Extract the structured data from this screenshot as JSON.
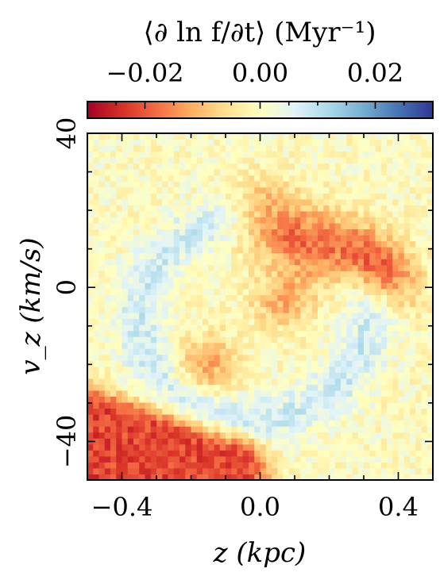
{
  "chart_data": {
    "type": "heatmap",
    "title": "",
    "colorbar": {
      "label": "⟨∂ ln f/∂t⟩ (Myr⁻¹)",
      "range": [
        -0.03,
        0.03
      ],
      "ticks": [
        -0.02,
        0.0,
        0.02
      ],
      "tick_labels": [
        "−0.02",
        "0.00",
        "0.02"
      ],
      "colormap": "RdYlBu",
      "colors": [
        "#a50026",
        "#d73027",
        "#f46d43",
        "#fdae61",
        "#fee090",
        "#ffffbf",
        "#e0f3f8",
        "#abd9e9",
        "#74add1",
        "#4575b4",
        "#313695"
      ],
      "placement": "top"
    },
    "xlabel": "z (kpc)",
    "ylabel": "v_z (km/s)",
    "xlim": [
      -0.5,
      0.5
    ],
    "ylim": [
      -50,
      40
    ],
    "xticks": [
      -0.4,
      0.0,
      0.4
    ],
    "xtick_labels": [
      "−0.4",
      "0.0",
      "0.4"
    ],
    "yticks": [
      -40,
      0,
      40
    ],
    "ytick_labels": [
      "−40",
      "0",
      "40"
    ],
    "grid": false,
    "features": [
      {
        "kind": "negative-band",
        "z_range": [
          0.0,
          0.38
        ],
        "vz_range": [
          5,
          25
        ],
        "value": -0.025
      },
      {
        "kind": "negative-blob",
        "z_center": 0.07,
        "vz_center": -3,
        "value": -0.012
      },
      {
        "kind": "negative-blob",
        "z_center": -0.15,
        "vz_center": -20,
        "value": -0.012
      },
      {
        "kind": "negative-corner",
        "z_range": [
          -0.5,
          -0.05
        ],
        "vz_range": [
          -50,
          -28
        ],
        "value": -0.022
      },
      {
        "kind": "positive-ring",
        "center": [
          -0.02,
          -8
        ],
        "radii": [
          0.33,
          26
        ],
        "value": 0.008
      }
    ]
  }
}
